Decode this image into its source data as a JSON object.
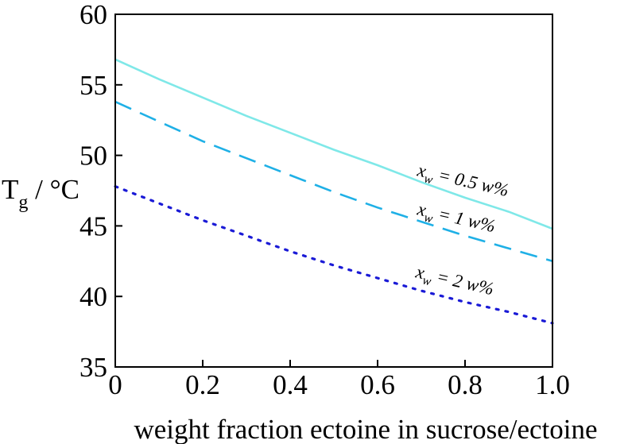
{
  "chart_data": {
    "type": "line",
    "title": "",
    "xlabel": "weight fraction ectoine in sucrose/ectoine",
    "ylabel_main": "T",
    "ylabel_sub": "g",
    "ylabel_rest": " / °C",
    "xlim": [
      0,
      1.0
    ],
    "ylim": [
      35,
      60
    ],
    "x_ticks": [
      0,
      0.2,
      0.4,
      0.6,
      0.8,
      1.0
    ],
    "x_tick_labels": [
      "0",
      "0.2",
      "0.4",
      "0.6",
      "0.8",
      "1.0"
    ],
    "y_ticks": [
      35,
      40,
      45,
      50,
      55,
      60
    ],
    "y_tick_labels": [
      "35",
      "40",
      "45",
      "50",
      "55",
      "60"
    ],
    "grid": false,
    "series": [
      {
        "name": "xw = 0.5 w%",
        "label_var": "x",
        "label_sub": "w",
        "label_rest": " = 0.5 w%",
        "color": "#7fe8e8",
        "style": "solid",
        "x": [
          0,
          0.1,
          0.2,
          0.3,
          0.4,
          0.5,
          0.6,
          0.7,
          0.8,
          0.9,
          1.0
        ],
        "y": [
          56.8,
          55.4,
          54.1,
          52.8,
          51.6,
          50.4,
          49.3,
          48.1,
          47.0,
          46.0,
          44.8
        ]
      },
      {
        "name": "xw = 1 w%",
        "label_var": "x",
        "label_sub": "w",
        "label_rest": " = 1 w%",
        "color": "#1fb0e6",
        "style": "dashed",
        "x": [
          0,
          0.1,
          0.2,
          0.3,
          0.4,
          0.5,
          0.6,
          0.7,
          0.8,
          0.9,
          1.0
        ],
        "y": [
          53.8,
          52.4,
          51.0,
          49.8,
          48.6,
          47.4,
          46.3,
          45.3,
          44.3,
          43.4,
          42.5
        ]
      },
      {
        "name": "xw = 2 w%",
        "label_var": "x",
        "label_sub": "w",
        "label_rest": " = 2 w%",
        "color": "#1a1ad6",
        "style": "dotted",
        "x": [
          0,
          0.1,
          0.2,
          0.3,
          0.4,
          0.5,
          0.6,
          0.7,
          0.8,
          0.9,
          1.0
        ],
        "y": [
          47.8,
          46.6,
          45.4,
          44.3,
          43.2,
          42.2,
          41.3,
          40.4,
          39.6,
          38.9,
          38.1
        ]
      }
    ]
  }
}
